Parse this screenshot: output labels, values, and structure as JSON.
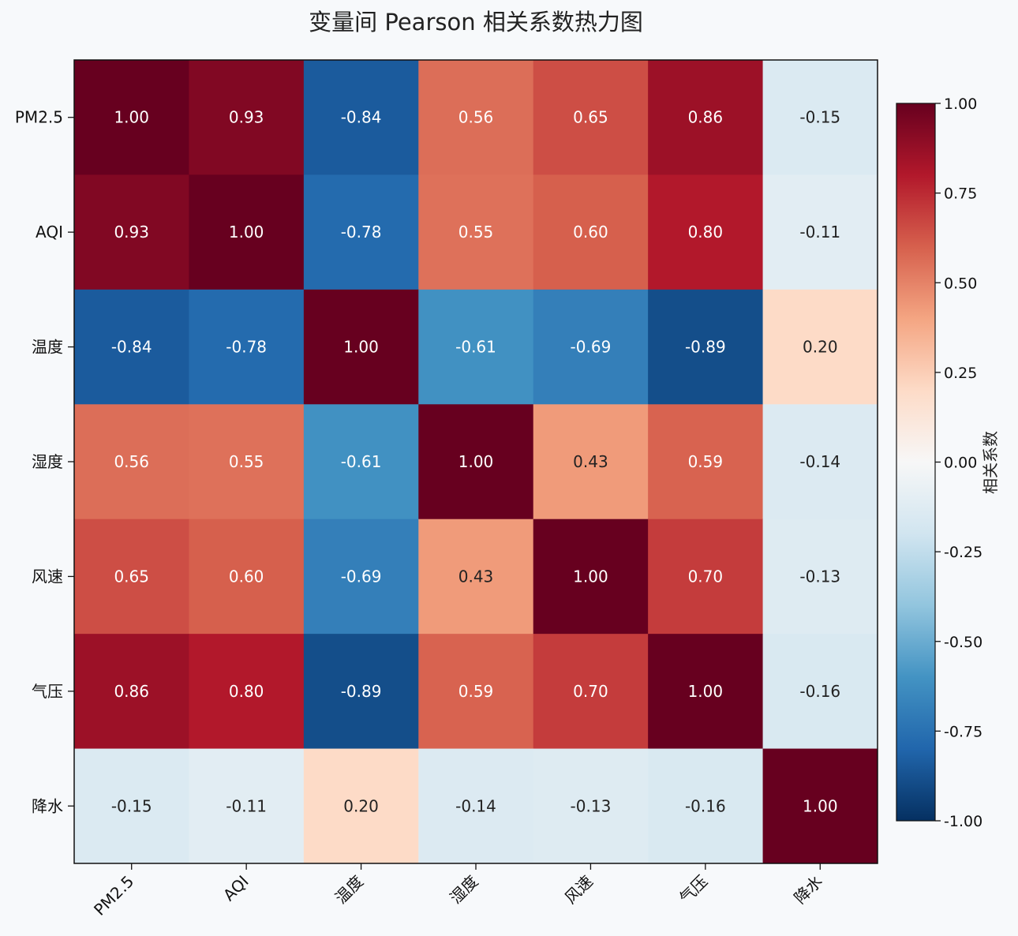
{
  "chart_data": {
    "type": "heatmap",
    "title": "变量间 Pearson 相关系数热力图",
    "row_labels": [
      "PM2.5",
      "AQI",
      "温度",
      "湿度",
      "风速",
      "气压",
      "降水"
    ],
    "col_labels": [
      "PM2.5",
      "AQI",
      "温度",
      "湿度",
      "风速",
      "气压",
      "降水"
    ],
    "values": [
      [
        1.0,
        0.93,
        -0.84,
        0.56,
        0.65,
        0.86,
        -0.15
      ],
      [
        0.93,
        1.0,
        -0.78,
        0.55,
        0.6,
        0.8,
        -0.11
      ],
      [
        -0.84,
        -0.78,
        1.0,
        -0.61,
        -0.69,
        -0.89,
        0.2
      ],
      [
        0.56,
        0.55,
        -0.61,
        1.0,
        0.43,
        0.59,
        -0.14
      ],
      [
        0.65,
        0.6,
        -0.69,
        0.43,
        1.0,
        0.7,
        -0.13
      ],
      [
        0.86,
        0.8,
        -0.89,
        0.59,
        0.7,
        1.0,
        -0.16
      ],
      [
        -0.15,
        -0.11,
        0.2,
        -0.14,
        -0.13,
        -0.16,
        1.0
      ]
    ],
    "colorbar": {
      "label": "相关系数",
      "range": [
        -1.0,
        1.0
      ],
      "ticks": [
        1.0,
        0.75,
        0.5,
        0.25,
        0.0,
        -0.25,
        -0.5,
        -0.75,
        -1.0
      ],
      "tick_labels": [
        "1.00",
        "0.75",
        "0.50",
        "0.25",
        "0.00",
        "-0.25",
        "-0.50",
        "-0.75",
        "-1.00"
      ],
      "colormap": "RdBu_r"
    },
    "grid": false
  }
}
